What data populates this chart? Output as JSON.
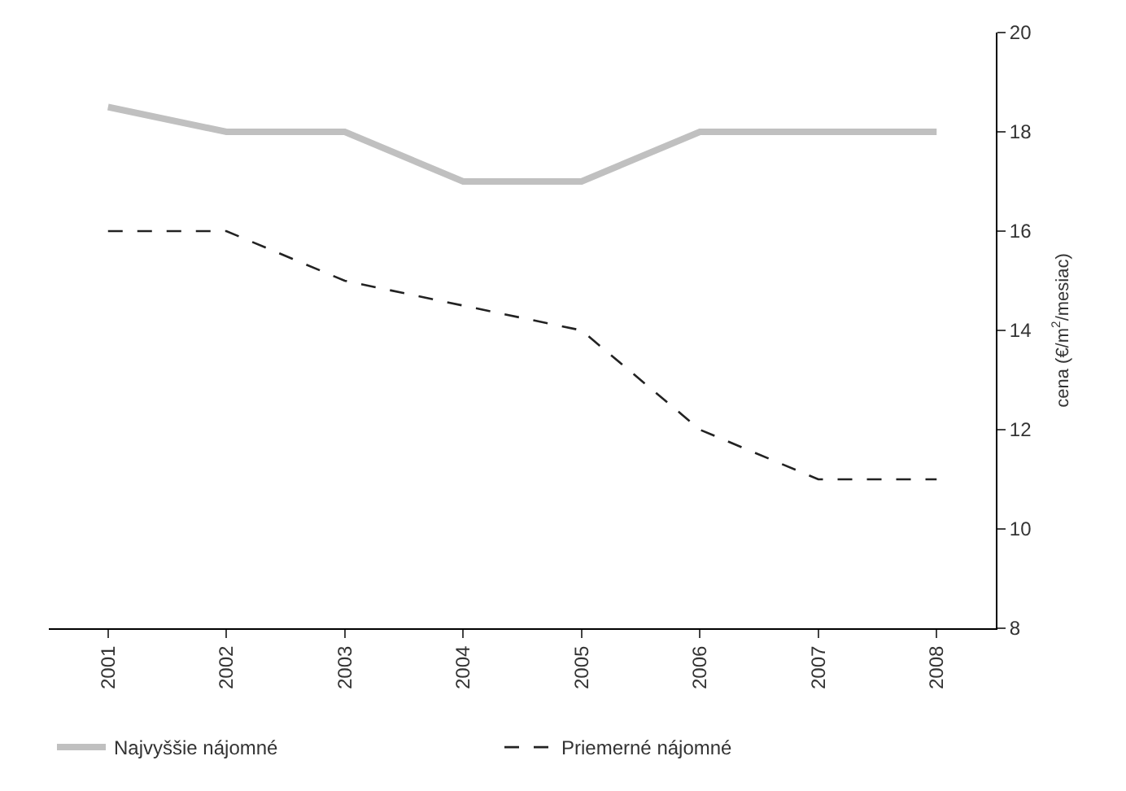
{
  "chart_data": {
    "type": "line",
    "categories": [
      "2001",
      "2002",
      "2003",
      "2004",
      "2005",
      "2006",
      "2007",
      "2008"
    ],
    "ylabel": "cena (€/m$^{2}$/mesiac)",
    "ylim": [
      8,
      20
    ],
    "yticks": [
      8,
      10,
      12,
      14,
      16,
      18,
      20
    ],
    "legend": "bottom",
    "marker": "none",
    "series": [
      {
        "name": "Najvyššie nájomné",
        "color": "#c0c0c0",
        "line_style": "solid",
        "values": [
          18.5,
          18,
          18,
          17,
          17,
          18,
          18,
          18
        ]
      },
      {
        "name": "Priemerné nájomné",
        "color": "#222222",
        "line_style": "dashed",
        "values": [
          16,
          16,
          15,
          14.5,
          14,
          12,
          11,
          11
        ]
      }
    ]
  }
}
